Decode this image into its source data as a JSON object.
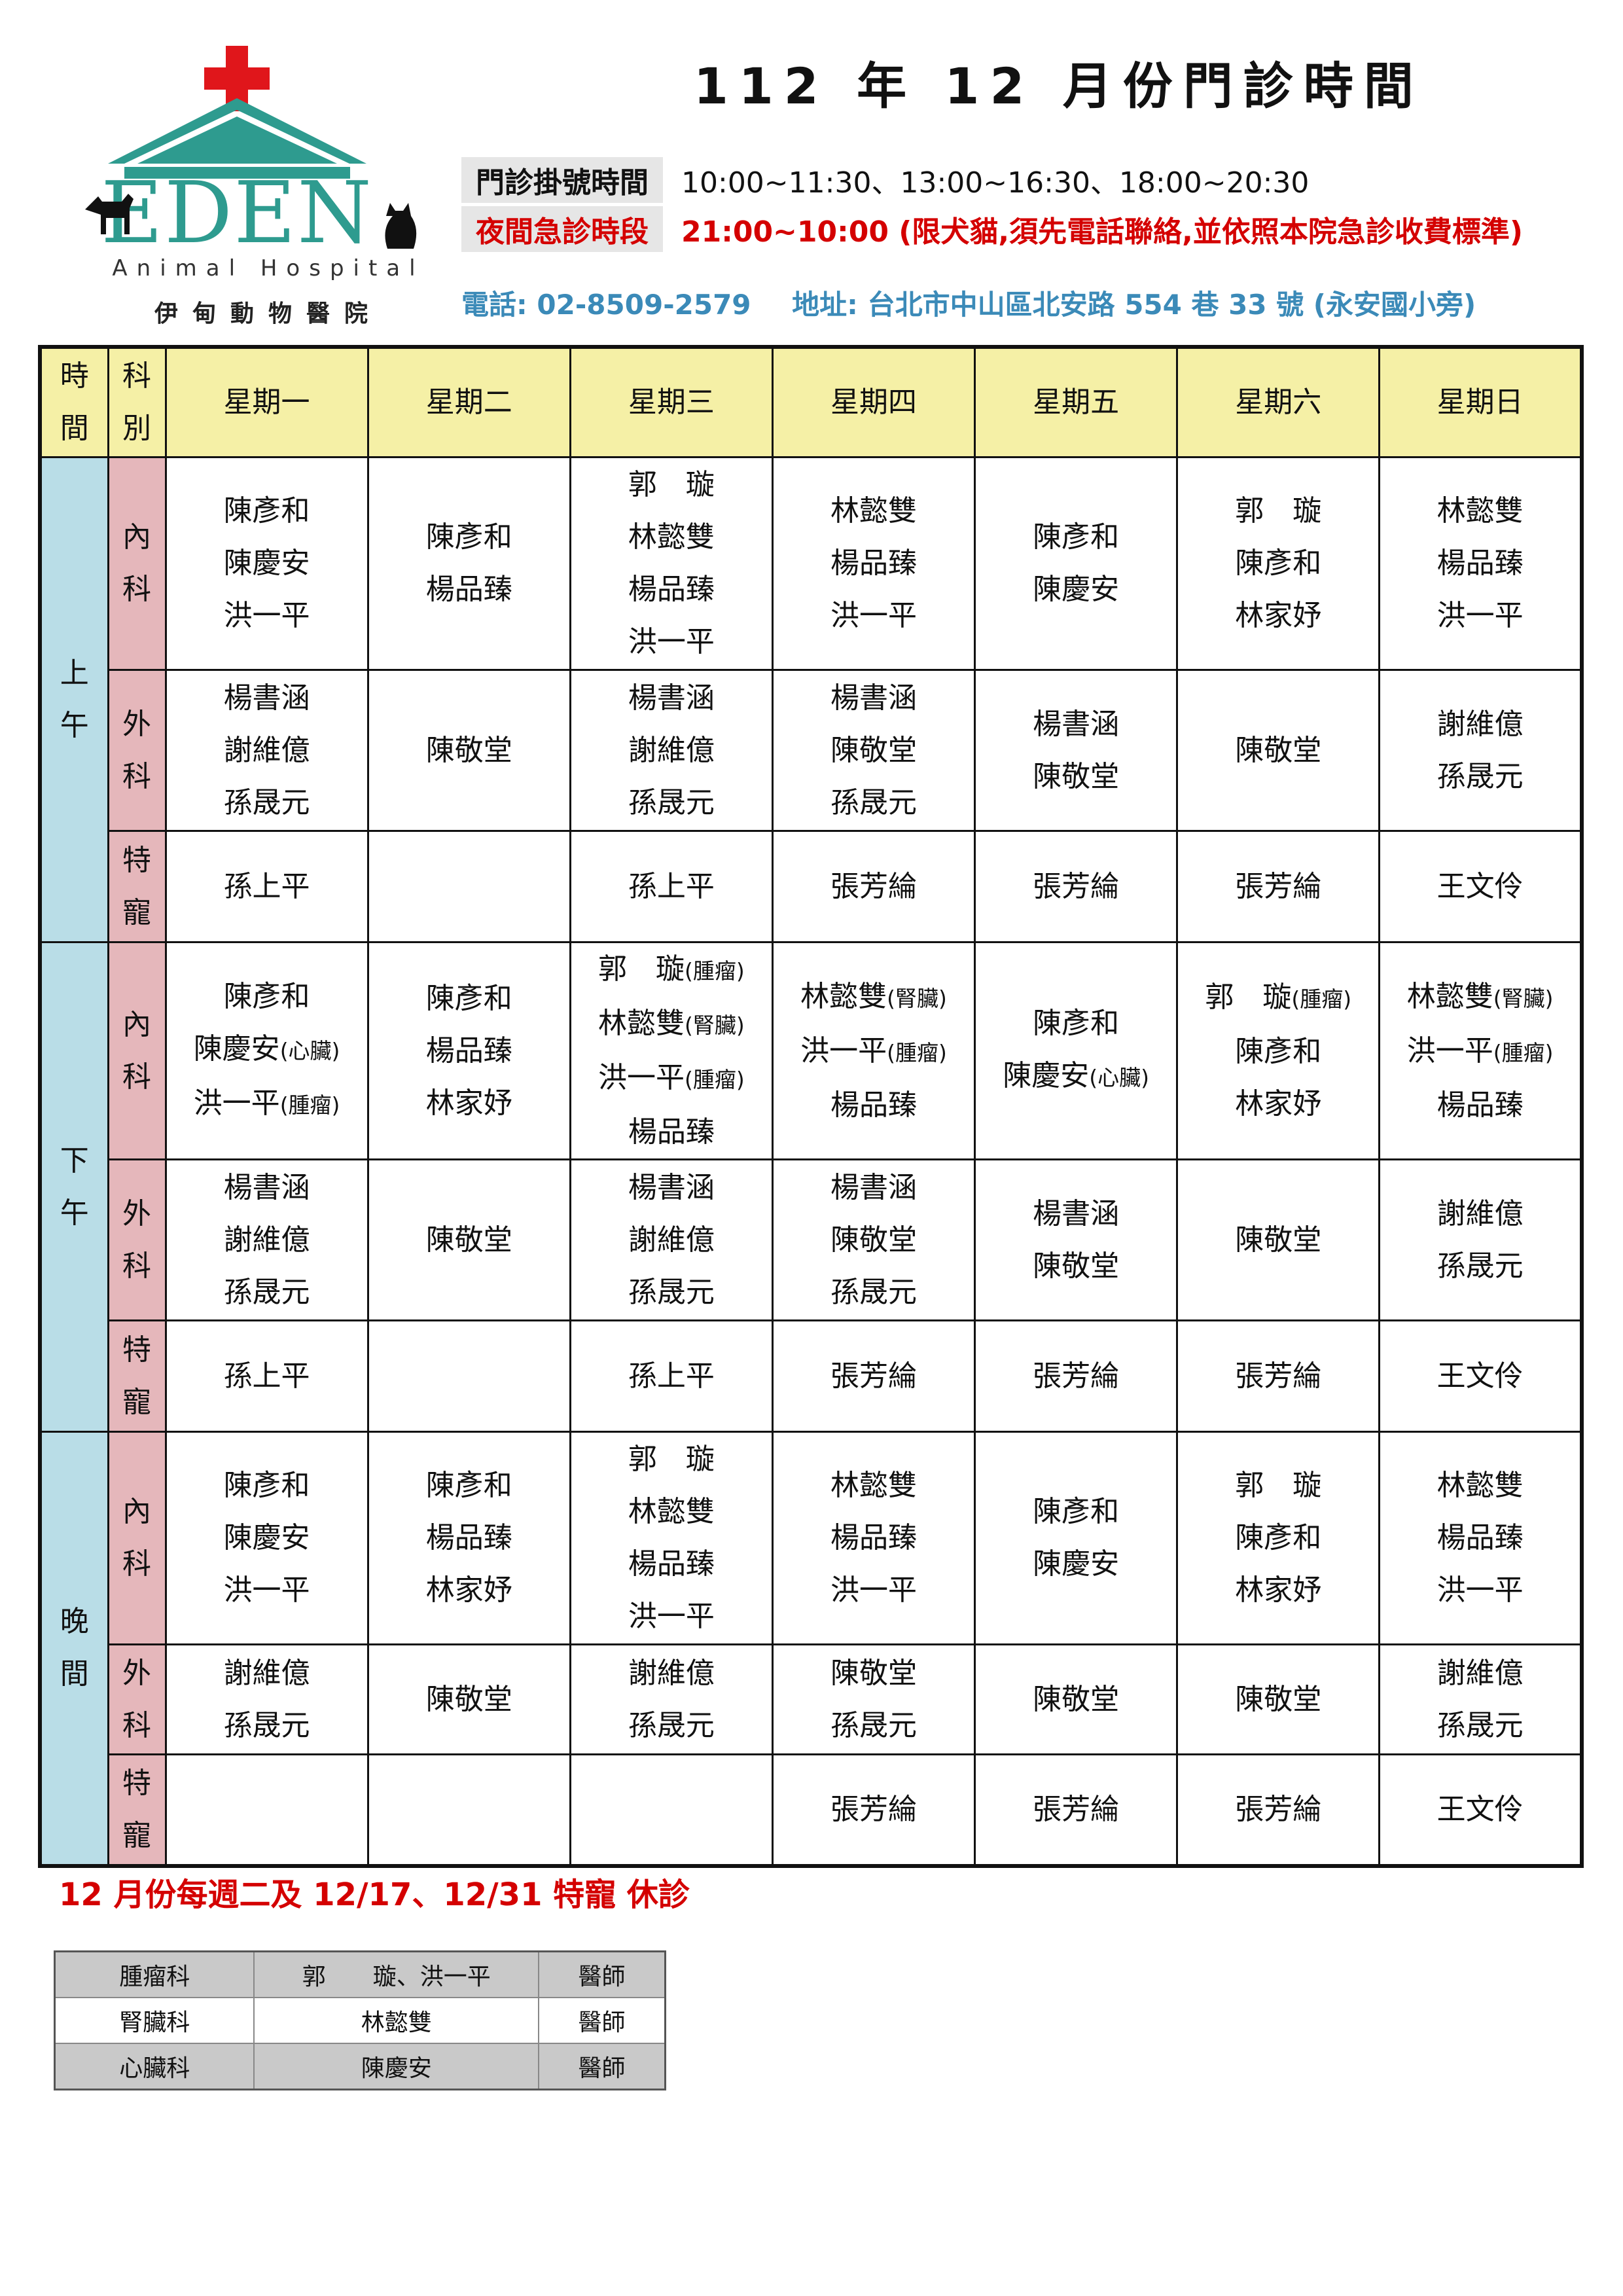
{
  "logo": {
    "brand": "EDEN",
    "subtitle_en": "Animal Hospital",
    "subtitle_zh": "伊甸動物醫院"
  },
  "title": "112 年 12 月份門診時間",
  "info": {
    "registration_label": "門診掛號時間",
    "registration_value": "10:00~11:30、13:00~16:30、18:00~20:30",
    "night_label": "夜間急診時段",
    "night_value": "21:00~10:00 (限犬貓,須先電話聯絡,並依照本院急診收費標準)",
    "phone": "電話: 02-8509-2579",
    "address": "地址:  台北市中山區北安路 554 巷 33 號  (永安國小旁)"
  },
  "schedule": {
    "header_time": [
      "時",
      "間"
    ],
    "header_dept": [
      "科",
      "別"
    ],
    "days": [
      "星期一",
      "星期二",
      "星期三",
      "星期四",
      "星期五",
      "星期六",
      "星期日"
    ],
    "periods": [
      {
        "name": [
          "上",
          "午"
        ],
        "rows": [
          {
            "dept": [
              "內",
              "科"
            ],
            "cells": [
              [
                [
                  "陳彥和",
                  ""
                ],
                [
                  "陳慶安",
                  ""
                ],
                [
                  "洪一平",
                  ""
                ]
              ],
              [
                [
                  "陳彥和",
                  ""
                ],
                [
                  "楊品臻",
                  ""
                ]
              ],
              [
                [
                  "郭　璇",
                  ""
                ],
                [
                  "林懿雙",
                  ""
                ],
                [
                  "楊品臻",
                  ""
                ],
                [
                  "洪一平",
                  ""
                ]
              ],
              [
                [
                  "林懿雙",
                  ""
                ],
                [
                  "楊品臻",
                  ""
                ],
                [
                  "洪一平",
                  ""
                ]
              ],
              [
                [
                  "陳彥和",
                  ""
                ],
                [
                  "陳慶安",
                  ""
                ]
              ],
              [
                [
                  "郭　璇",
                  ""
                ],
                [
                  "陳彥和",
                  ""
                ],
                [
                  "林家妤",
                  ""
                ]
              ],
              [
                [
                  "林懿雙",
                  ""
                ],
                [
                  "楊品臻",
                  ""
                ],
                [
                  "洪一平",
                  ""
                ]
              ]
            ]
          },
          {
            "dept": [
              "外",
              "科"
            ],
            "cells": [
              [
                [
                  "楊書涵",
                  ""
                ],
                [
                  "謝維億",
                  ""
                ],
                [
                  "孫晟元",
                  ""
                ]
              ],
              [
                [
                  "陳敬堂",
                  ""
                ]
              ],
              [
                [
                  "楊書涵",
                  ""
                ],
                [
                  "謝維億",
                  ""
                ],
                [
                  "孫晟元",
                  ""
                ]
              ],
              [
                [
                  "楊書涵",
                  ""
                ],
                [
                  "陳敬堂",
                  ""
                ],
                [
                  "孫晟元",
                  ""
                ]
              ],
              [
                [
                  "楊書涵",
                  ""
                ],
                [
                  "陳敬堂",
                  ""
                ]
              ],
              [
                [
                  "陳敬堂",
                  ""
                ]
              ],
              [
                [
                  "謝維億",
                  ""
                ],
                [
                  "孫晟元",
                  ""
                ]
              ]
            ]
          },
          {
            "dept": [
              "特",
              "寵"
            ],
            "cells": [
              [
                [
                  "孫上平",
                  ""
                ]
              ],
              [],
              [
                [
                  "孫上平",
                  ""
                ]
              ],
              [
                [
                  "張芳綸",
                  ""
                ]
              ],
              [
                [
                  "張芳綸",
                  ""
                ]
              ],
              [
                [
                  "張芳綸",
                  ""
                ]
              ],
              [
                [
                  "王文伶",
                  ""
                ]
              ]
            ]
          }
        ]
      },
      {
        "name": [
          "下",
          "午"
        ],
        "rows": [
          {
            "dept": [
              "內",
              "科"
            ],
            "cells": [
              [
                [
                  "陳彥和",
                  ""
                ],
                [
                  "陳慶安",
                  "(心臟)"
                ],
                [
                  "洪一平",
                  "(腫瘤)"
                ]
              ],
              [
                [
                  "陳彥和",
                  ""
                ],
                [
                  "楊品臻",
                  ""
                ],
                [
                  "林家妤",
                  ""
                ]
              ],
              [
                [
                  "郭　璇",
                  "(腫瘤)"
                ],
                [
                  "林懿雙",
                  "(腎臟)"
                ],
                [
                  "洪一平",
                  "(腫瘤)"
                ],
                [
                  "楊品臻",
                  ""
                ]
              ],
              [
                [
                  "林懿雙",
                  "(腎臟)"
                ],
                [
                  "洪一平",
                  "(腫瘤)"
                ],
                [
                  "楊品臻",
                  ""
                ]
              ],
              [
                [
                  "陳彥和",
                  ""
                ],
                [
                  "陳慶安",
                  "(心臟)"
                ]
              ],
              [
                [
                  "郭　璇",
                  "(腫瘤)"
                ],
                [
                  "陳彥和",
                  ""
                ],
                [
                  "林家妤",
                  ""
                ]
              ],
              [
                [
                  "林懿雙",
                  "(腎臟)"
                ],
                [
                  "洪一平",
                  "(腫瘤)"
                ],
                [
                  "楊品臻",
                  ""
                ]
              ]
            ]
          },
          {
            "dept": [
              "外",
              "科"
            ],
            "cells": [
              [
                [
                  "楊書涵",
                  ""
                ],
                [
                  "謝維億",
                  ""
                ],
                [
                  "孫晟元",
                  ""
                ]
              ],
              [
                [
                  "陳敬堂",
                  ""
                ]
              ],
              [
                [
                  "楊書涵",
                  ""
                ],
                [
                  "謝維億",
                  ""
                ],
                [
                  "孫晟元",
                  ""
                ]
              ],
              [
                [
                  "楊書涵",
                  ""
                ],
                [
                  "陳敬堂",
                  ""
                ],
                [
                  "孫晟元",
                  ""
                ]
              ],
              [
                [
                  "楊書涵",
                  ""
                ],
                [
                  "陳敬堂",
                  ""
                ]
              ],
              [
                [
                  "陳敬堂",
                  ""
                ]
              ],
              [
                [
                  "謝維億",
                  ""
                ],
                [
                  "孫晟元",
                  ""
                ]
              ]
            ]
          },
          {
            "dept": [
              "特",
              "寵"
            ],
            "cells": [
              [
                [
                  "孫上平",
                  ""
                ]
              ],
              [],
              [
                [
                  "孫上平",
                  ""
                ]
              ],
              [
                [
                  "張芳綸",
                  ""
                ]
              ],
              [
                [
                  "張芳綸",
                  ""
                ]
              ],
              [
                [
                  "張芳綸",
                  ""
                ]
              ],
              [
                [
                  "王文伶",
                  ""
                ]
              ]
            ]
          }
        ]
      },
      {
        "name": [
          "晚",
          "間"
        ],
        "rows": [
          {
            "dept": [
              "內",
              "科"
            ],
            "cells": [
              [
                [
                  "陳彥和",
                  ""
                ],
                [
                  "陳慶安",
                  ""
                ],
                [
                  "洪一平",
                  ""
                ]
              ],
              [
                [
                  "陳彥和",
                  ""
                ],
                [
                  "楊品臻",
                  ""
                ],
                [
                  "林家妤",
                  ""
                ]
              ],
              [
                [
                  "郭　璇",
                  ""
                ],
                [
                  "林懿雙",
                  ""
                ],
                [
                  "楊品臻",
                  ""
                ],
                [
                  "洪一平",
                  ""
                ]
              ],
              [
                [
                  "林懿雙",
                  ""
                ],
                [
                  "楊品臻",
                  ""
                ],
                [
                  "洪一平",
                  ""
                ]
              ],
              [
                [
                  "陳彥和",
                  ""
                ],
                [
                  "陳慶安",
                  ""
                ]
              ],
              [
                [
                  "郭　璇",
                  ""
                ],
                [
                  "陳彥和",
                  ""
                ],
                [
                  "林家妤",
                  ""
                ]
              ],
              [
                [
                  "林懿雙",
                  ""
                ],
                [
                  "楊品臻",
                  ""
                ],
                [
                  "洪一平",
                  ""
                ]
              ]
            ]
          },
          {
            "dept": [
              "外",
              "科"
            ],
            "cells": [
              [
                [
                  "謝維億",
                  ""
                ],
                [
                  "孫晟元",
                  ""
                ]
              ],
              [
                [
                  "陳敬堂",
                  ""
                ]
              ],
              [
                [
                  "謝維億",
                  ""
                ],
                [
                  "孫晟元",
                  ""
                ]
              ],
              [
                [
                  "陳敬堂",
                  ""
                ],
                [
                  "孫晟元",
                  ""
                ]
              ],
              [
                [
                  "陳敬堂",
                  ""
                ]
              ],
              [
                [
                  "陳敬堂",
                  ""
                ]
              ],
              [
                [
                  "謝維億",
                  ""
                ],
                [
                  "孫晟元",
                  ""
                ]
              ]
            ]
          },
          {
            "dept": [
              "特",
              "寵"
            ],
            "cells": [
              [],
              [],
              [],
              [
                [
                  "張芳綸",
                  ""
                ]
              ],
              [
                [
                  "張芳綸",
                  ""
                ]
              ],
              [
                [
                  "張芳綸",
                  ""
                ]
              ],
              [
                [
                  "王文伶",
                  ""
                ]
              ]
            ]
          }
        ]
      }
    ]
  },
  "note": "12 月份每週二及 12/17、12/31  特寵  休診",
  "specialists": [
    {
      "dept": "腫瘤科",
      "doctors": "郭　　璇、洪一平",
      "title": "醫師"
    },
    {
      "dept": "腎臟科",
      "doctors": "林懿雙",
      "title": "醫師"
    },
    {
      "dept": "心臟科",
      "doctors": "陳慶安",
      "title": "醫師"
    }
  ],
  "colors": {
    "red": "#d40000",
    "teal": "#2e9b8f",
    "header_bg": "#f5f0a6",
    "time_bg": "#b9dde7",
    "dept_bg": "#e5b7bb",
    "contact": "#3b8ab8"
  }
}
